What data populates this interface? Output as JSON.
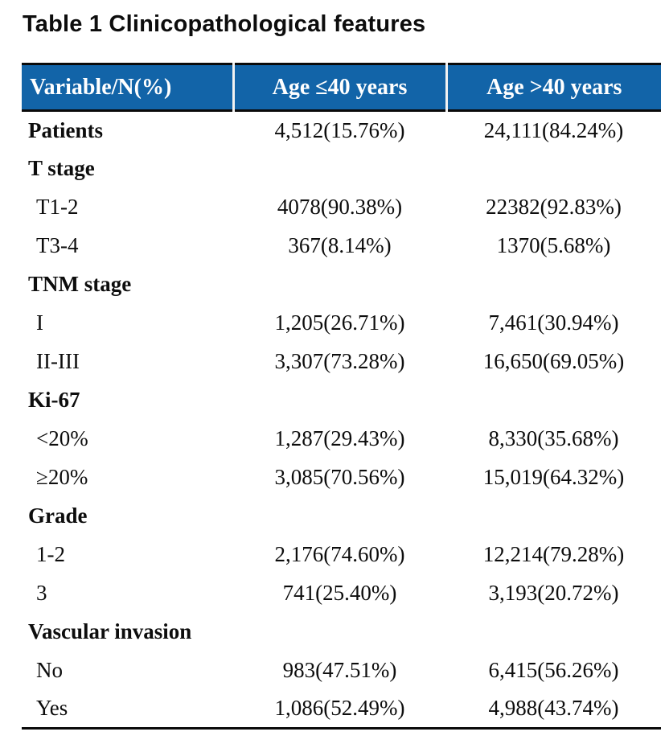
{
  "title": "Table 1 Clinicopathological features",
  "colors": {
    "header_background": "#1264a8",
    "header_text": "#ffffff",
    "rule_color": "#0a0a0a",
    "body_text": "#0d0d0d"
  },
  "table": {
    "columns": [
      "Variable/N(%)",
      "Age ≤40 years",
      "Age >40 years"
    ],
    "rows": [
      {
        "label": "Patients",
        "bold": true,
        "indent": false,
        "age_le40": "4,512(15.76%)",
        "age_gt40": "24,111(84.24%)"
      },
      {
        "label": "T stage",
        "bold": true,
        "indent": false,
        "age_le40": "",
        "age_gt40": ""
      },
      {
        "label": "T1-2",
        "bold": false,
        "indent": true,
        "age_le40": "4078(90.38%)",
        "age_gt40": "22382(92.83%)"
      },
      {
        "label": "T3-4",
        "bold": false,
        "indent": true,
        "age_le40": "367(8.14%)",
        "age_gt40": "1370(5.68%)"
      },
      {
        "label": "TNM stage",
        "bold": true,
        "indent": false,
        "age_le40": "",
        "age_gt40": ""
      },
      {
        "label": "I",
        "bold": false,
        "indent": true,
        "age_le40": "1,205(26.71%)",
        "age_gt40": "7,461(30.94%)"
      },
      {
        "label": "II-III",
        "bold": false,
        "indent": true,
        "age_le40": "3,307(73.28%)",
        "age_gt40": "16,650(69.05%)"
      },
      {
        "label": "Ki-67",
        "bold": true,
        "indent": false,
        "age_le40": "",
        "age_gt40": ""
      },
      {
        "label": "<20%",
        "bold": false,
        "indent": true,
        "age_le40": "1,287(29.43%)",
        "age_gt40": "8,330(35.68%)"
      },
      {
        "label": "≥20%",
        "bold": false,
        "indent": true,
        "age_le40": "3,085(70.56%)",
        "age_gt40": "15,019(64.32%)"
      },
      {
        "label": "Grade",
        "bold": true,
        "indent": false,
        "age_le40": "",
        "age_gt40": ""
      },
      {
        "label": "1-2",
        "bold": false,
        "indent": true,
        "age_le40": "2,176(74.60%)",
        "age_gt40": "12,214(79.28%)"
      },
      {
        "label": "3",
        "bold": false,
        "indent": true,
        "age_le40": "741(25.40%)",
        "age_gt40": "3,193(20.72%)"
      },
      {
        "label": "Vascular invasion",
        "bold": true,
        "indent": false,
        "age_le40": "",
        "age_gt40": ""
      },
      {
        "label": "No",
        "bold": false,
        "indent": true,
        "age_le40": "983(47.51%)",
        "age_gt40": "6,415(56.26%)"
      },
      {
        "label": "Yes",
        "bold": false,
        "indent": true,
        "age_le40": "1,086(52.49%)",
        "age_gt40": "4,988(43.74%)"
      }
    ]
  },
  "chart_data": {
    "type": "table",
    "title": "Table 1 Clinicopathological features",
    "columns": [
      "Variable/N(%)",
      "Age ≤40 years",
      "Age >40 years"
    ],
    "rows": [
      [
        "Patients",
        "4,512(15.76%)",
        "24,111(84.24%)"
      ],
      [
        "T stage",
        "",
        ""
      ],
      [
        "T1-2",
        "4078(90.38%)",
        "22382(92.83%)"
      ],
      [
        "T3-4",
        "367(8.14%)",
        "1370(5.68%)"
      ],
      [
        "TNM stage",
        "",
        ""
      ],
      [
        "I",
        "1,205(26.71%)",
        "7,461(30.94%)"
      ],
      [
        "II-III",
        "3,307(73.28%)",
        "16,650(69.05%)"
      ],
      [
        "Ki-67",
        "",
        ""
      ],
      [
        "<20%",
        "1,287(29.43%)",
        "8,330(35.68%)"
      ],
      [
        "≥20%",
        "3,085(70.56%)",
        "15,019(64.32%)"
      ],
      [
        "Grade",
        "",
        ""
      ],
      [
        "1-2",
        "2,176(74.60%)",
        "12,214(79.28%)"
      ],
      [
        "3",
        "741(25.40%)",
        "3,193(20.72%)"
      ],
      [
        "Vascular invasion",
        "",
        ""
      ],
      [
        "No",
        "983(47.51%)",
        "6,415(56.26%)"
      ],
      [
        "Yes",
        "1,086(52.49%)",
        "4,988(43.74%)"
      ]
    ]
  }
}
